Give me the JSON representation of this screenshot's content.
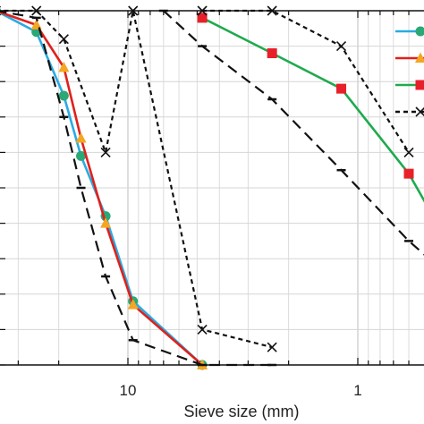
{
  "chart_data": {
    "type": "line",
    "title": "",
    "xlabel": "Sieve size (mm)",
    "ylabel": "",
    "x_scale": "log",
    "x_reversed": true,
    "x_ticks": [
      {
        "value": 10,
        "label": "10"
      },
      {
        "value": 1,
        "label": "1"
      }
    ],
    "xlim": [
      25,
      0.4
    ],
    "ylim": [
      0,
      100
    ],
    "grid": true,
    "legend": "top-right (cropped)",
    "series": [
      {
        "color": "#29abe2",
        "marker": "circle",
        "marker_color": "#2aa876",
        "dash": "solid",
        "points": [
          [
            37.5,
            100
          ],
          [
            25,
            94
          ],
          [
            19,
            76
          ],
          [
            16,
            59
          ],
          [
            12.5,
            42
          ],
          [
            9.5,
            18
          ],
          [
            4.75,
            0
          ]
        ]
      },
      {
        "color": "#e0201b",
        "marker": "triangle",
        "marker_color": "#f5a623",
        "dash": "solid",
        "points": [
          [
            37.5,
            100
          ],
          [
            25,
            96
          ],
          [
            19,
            84
          ],
          [
            16,
            64
          ],
          [
            12.5,
            40
          ],
          [
            9.5,
            17
          ],
          [
            4.75,
            0
          ]
        ]
      },
      {
        "color": "#1faa4e",
        "marker": "square",
        "marker_color": "#e8202a",
        "dash": "solid",
        "points": [
          [
            4.75,
            98
          ],
          [
            2.36,
            88
          ],
          [
            1.18,
            78
          ],
          [
            0.6,
            54
          ],
          [
            0.4,
            34
          ]
        ]
      },
      {
        "color": "#111111",
        "marker": "x",
        "marker_color": "#111111",
        "dash": "short",
        "points": [
          [
            37.5,
            100
          ],
          [
            25,
            100
          ],
          [
            19,
            92
          ],
          [
            12.5,
            60
          ],
          [
            9.5,
            100
          ],
          [
            4.75,
            10
          ],
          [
            2.36,
            5
          ]
        ]
      },
      {
        "color": "#111111",
        "marker": "x",
        "marker_color": "#111111",
        "dash": "short",
        "points": [
          [
            4.75,
            100
          ],
          [
            2.36,
            100
          ],
          [
            1.18,
            90
          ],
          [
            0.6,
            60
          ]
        ]
      },
      {
        "color": "#111111",
        "marker": "dash",
        "marker_color": "#111111",
        "dash": "long",
        "points": [
          [
            37.5,
            100
          ],
          [
            25,
            98
          ],
          [
            19,
            70
          ],
          [
            16,
            50
          ],
          [
            12.5,
            25
          ],
          [
            9.5,
            7
          ],
          [
            4.75,
            0
          ],
          [
            2.36,
            0
          ]
        ]
      },
      {
        "color": "#111111",
        "marker": "dash",
        "marker_color": "#111111",
        "dash": "long",
        "points": [
          [
            7,
            100
          ],
          [
            4.75,
            90
          ],
          [
            2.36,
            75
          ],
          [
            1.18,
            55
          ],
          [
            0.6,
            35
          ],
          [
            0.4,
            25
          ]
        ]
      }
    ]
  },
  "legend_swatches": [
    {
      "color": "#29abe2",
      "marker": "circle",
      "marker_color": "#2aa876",
      "dash": "solid"
    },
    {
      "color": "#e0201b",
      "marker": "triangle",
      "marker_color": "#f5a623",
      "dash": "solid"
    },
    {
      "color": "#1faa4e",
      "marker": "square",
      "marker_color": "#e8202a",
      "dash": "solid"
    },
    {
      "color": "#111111",
      "marker": "x",
      "marker_color": "#111111",
      "dash": "short"
    }
  ]
}
